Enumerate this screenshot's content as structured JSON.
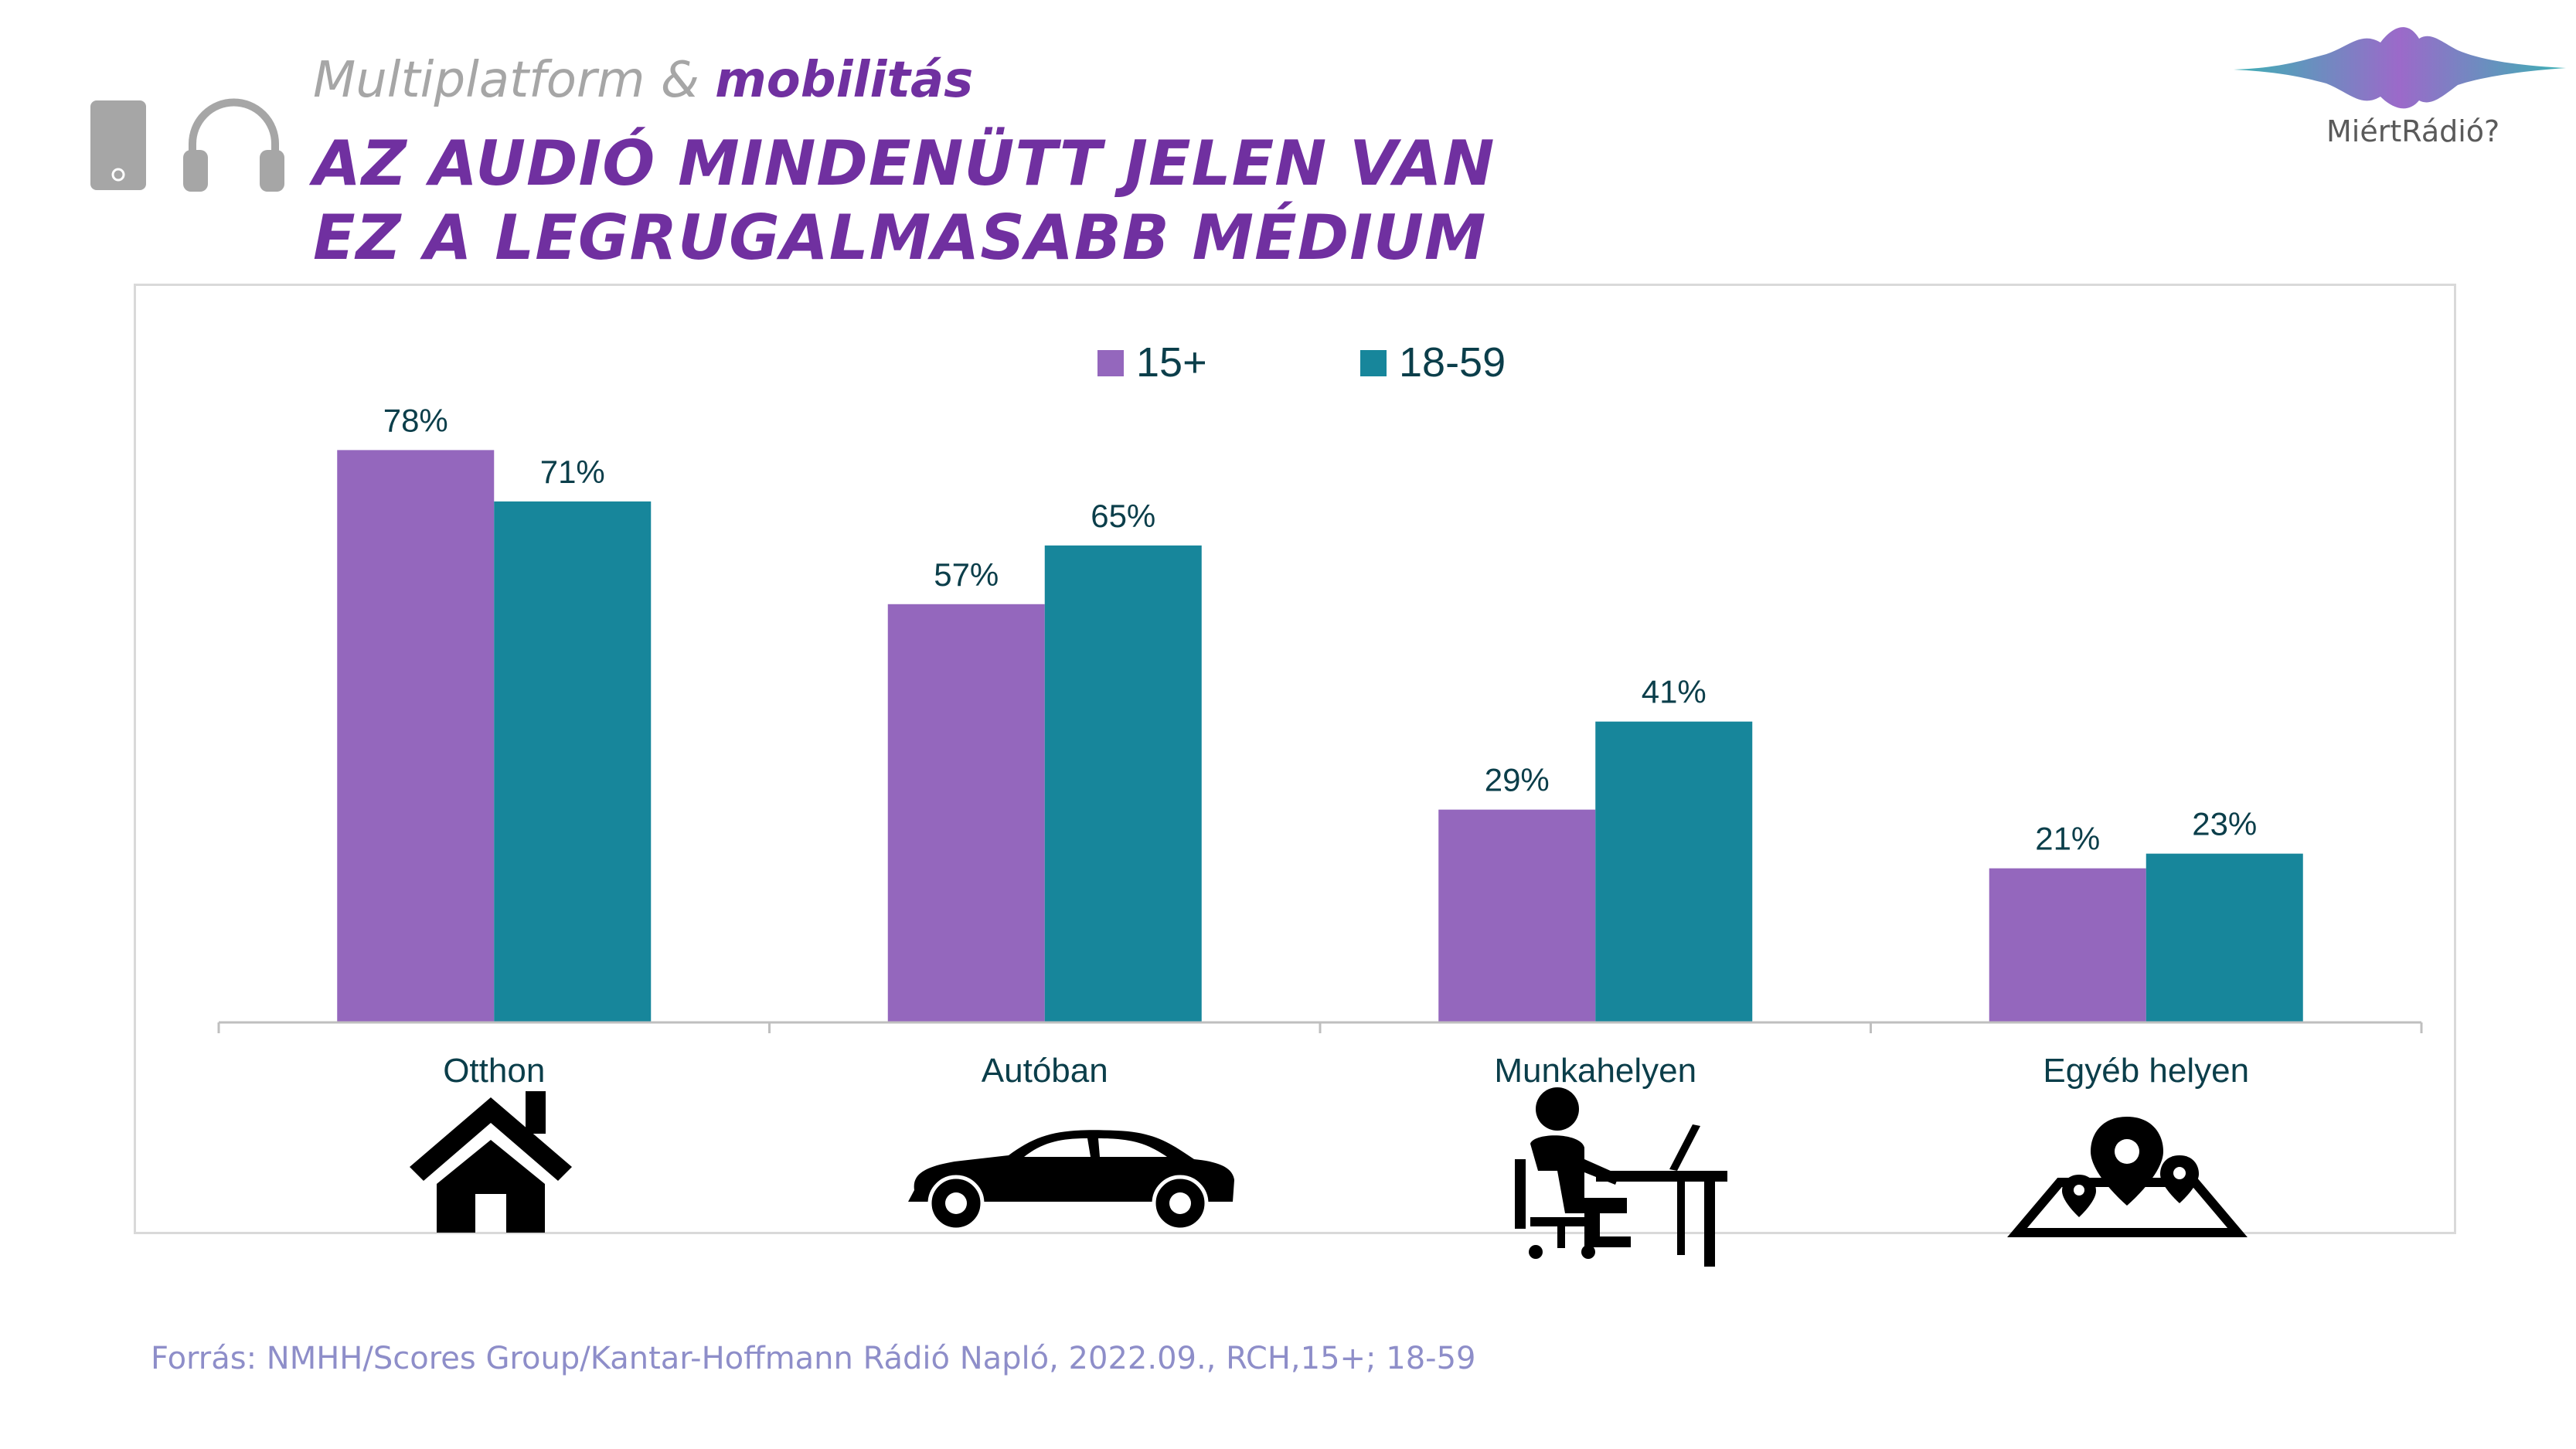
{
  "header": {
    "kicker_normal": "Multiplatform & ",
    "kicker_accent": "mobilitás",
    "title_line1": "AZ AUDIÓ MINDENÜTT JELEN VAN",
    "title_line2": "EZ A LEGRUGALMASABB MÉDIUM",
    "icons": [
      "phone-icon",
      "headphones-icon"
    ]
  },
  "logo": {
    "text": "MiértRádió?"
  },
  "colors": {
    "series_15plus": "#9467bd",
    "series_18_59": "#17869b",
    "title": "#7030a0",
    "label": "#0b3e4a",
    "source": "#8e8ec9"
  },
  "chart_data": {
    "type": "bar",
    "categories": [
      "Otthon",
      "Autóban",
      "Munkahelyen",
      "Egyéb helyen"
    ],
    "series": [
      {
        "name": "15+",
        "values": [
          78,
          57,
          29,
          21
        ],
        "labels": [
          "78%",
          "57%",
          "29%",
          "21%"
        ]
      },
      {
        "name": "18-59",
        "values": [
          71,
          65,
          41,
          23
        ],
        "labels": [
          "71%",
          "65%",
          "41%",
          "23%"
        ]
      }
    ],
    "ylim": [
      0,
      100
    ],
    "grid": false,
    "legend_position": "top-center",
    "category_icons": [
      "house-icon",
      "car-icon",
      "worker-at-desk-icon",
      "map-pin-icon"
    ]
  },
  "source": "Forrás: NMHH/Scores Group/Kantar-Hoffmann Rádió Napló, 2022.09., RCH,15+; 18-59"
}
